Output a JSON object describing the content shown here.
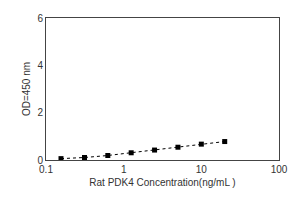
{
  "chart_data": {
    "type": "line",
    "xlabel": "Rat PDK4 Concentration(ng/mL )",
    "ylabel": "OD=450 nm",
    "x": [
      0.156,
      0.313,
      0.625,
      1.25,
      2.5,
      5.0,
      10.0,
      20.0
    ],
    "values": [
      0.058,
      0.105,
      0.19,
      0.305,
      0.42,
      0.54,
      0.67,
      0.78
    ],
    "xlim": [
      0.1,
      100
    ],
    "ylim": [
      0,
      6
    ],
    "xticks": [
      0.1,
      1,
      10,
      100
    ],
    "yticks": [
      0,
      2,
      4,
      6
    ],
    "log": "x",
    "grid": false,
    "color": "black",
    "marker": "square",
    "line_style": "dotted"
  }
}
